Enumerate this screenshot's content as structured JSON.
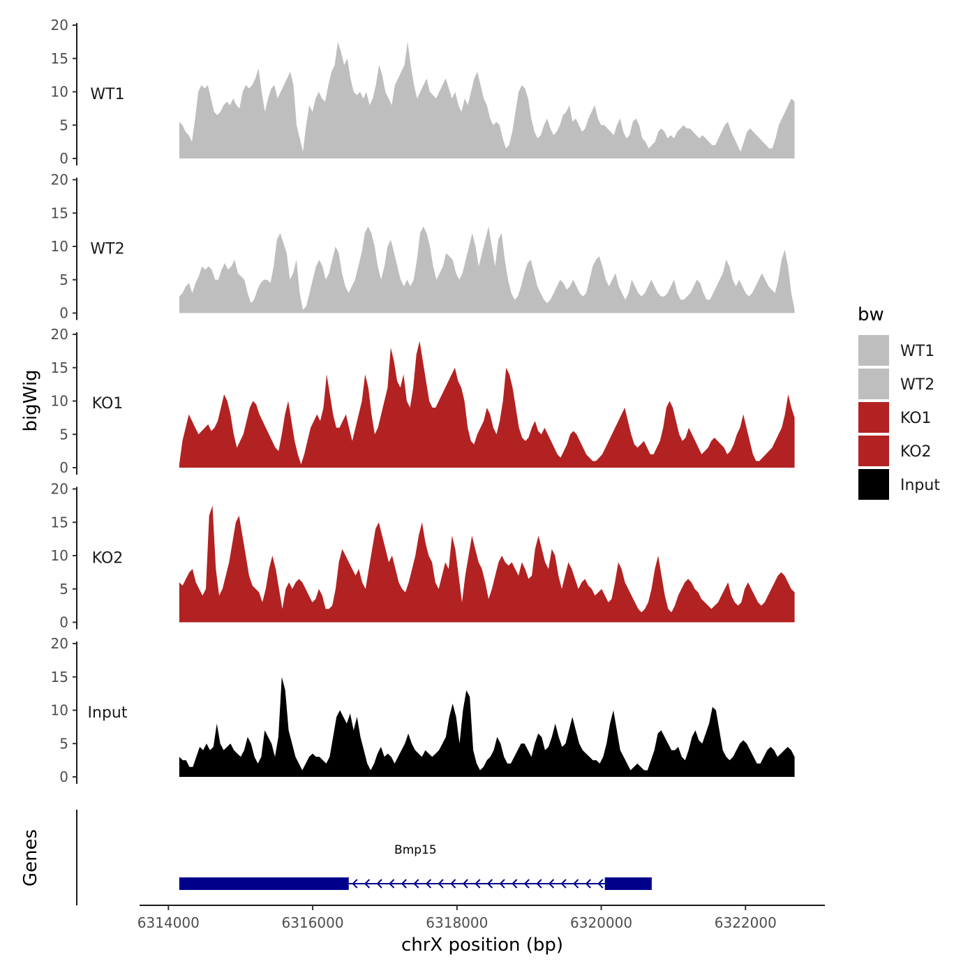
{
  "chart_data": {
    "type": "area",
    "title": "",
    "ylabel": "bigWig",
    "xlabel": "chrX position (bp)",
    "chromosome": "chrX",
    "xlim": [
      6313600,
      6323100
    ],
    "data_range": [
      6314150,
      6322680
    ],
    "ylim": [
      0,
      20
    ],
    "yticks": [
      0,
      5,
      10,
      15,
      20
    ],
    "xticks": [
      6314000,
      6316000,
      6318000,
      6320000,
      6322000
    ],
    "legend": {
      "title": "bw",
      "position": "right",
      "entries": [
        {
          "label": "WT1",
          "color": "#bebebe"
        },
        {
          "label": "WT2",
          "color": "#bebebe"
        },
        {
          "label": "KO1",
          "color": "#b22222"
        },
        {
          "label": "KO2",
          "color": "#b22222"
        },
        {
          "label": "Input",
          "color": "#000000"
        }
      ]
    },
    "series": [
      {
        "name": "WT1",
        "color": "#bebebe",
        "values": [
          5.5,
          5,
          4,
          3.5,
          2.5,
          6,
          10,
          11,
          10.5,
          11,
          9,
          7,
          6.5,
          7,
          8,
          8.5,
          8,
          9,
          8,
          7.5,
          10,
          11,
          10.5,
          11,
          12,
          13.5,
          10,
          7,
          9,
          10.5,
          11,
          9,
          10,
          11,
          12,
          13,
          11,
          5,
          3,
          1,
          5,
          8,
          7,
          9,
          10,
          9,
          8.5,
          11,
          13,
          14,
          17.5,
          16,
          14,
          15,
          12,
          10,
          9.5,
          10,
          9,
          10,
          8,
          9,
          11,
          14,
          12.5,
          10,
          9,
          8,
          11,
          12,
          13,
          14,
          17.5,
          14,
          11,
          9,
          10,
          11,
          12,
          10,
          9.5,
          9,
          10,
          11,
          12,
          10.5,
          9,
          10,
          8,
          7,
          9,
          8,
          10,
          12,
          13,
          11,
          9,
          8,
          6,
          5,
          5.5,
          5,
          3,
          1.5,
          2,
          4,
          7,
          10,
          11,
          10.5,
          9,
          6,
          4,
          3,
          3.5,
          5,
          6,
          4.5,
          3.5,
          4,
          5,
          6.5,
          7,
          8,
          5.5,
          6,
          5,
          4,
          4.5,
          6,
          7,
          8,
          6,
          5,
          5,
          4.5,
          4,
          3.5,
          5,
          6,
          4,
          3,
          3.5,
          5.5,
          6,
          5,
          3,
          2.5,
          1.5,
          2,
          2.5,
          4,
          4.5,
          4,
          3,
          3.5,
          3,
          4,
          4.5,
          5,
          4.5,
          4.5,
          4,
          3.5,
          3,
          3.5,
          3,
          2.5,
          2,
          2,
          3,
          4,
          5,
          5.5,
          4,
          3,
          2,
          1,
          2.5,
          4,
          4.5,
          4,
          3.5,
          3,
          2.5,
          2,
          1.5,
          1.5,
          3,
          5,
          6,
          7,
          8,
          9,
          8.5
        ]
      },
      {
        "name": "WT2",
        "color": "#bebebe",
        "values": [
          2.5,
          3,
          4,
          4.5,
          3,
          4.5,
          5.5,
          7,
          6.5,
          7,
          6.5,
          5,
          5,
          6.5,
          7.5,
          6.5,
          7,
          8,
          6,
          5.5,
          5,
          3,
          1.5,
          2,
          3.5,
          4.5,
          5,
          5,
          4.5,
          7,
          11,
          12,
          10.5,
          9,
          5,
          6,
          8,
          3,
          0.5,
          1,
          3,
          5,
          7,
          8,
          7,
          5,
          6,
          8,
          10,
          9,
          6,
          4,
          3,
          4,
          5,
          7,
          9,
          12,
          13,
          12,
          10,
          7,
          5,
          7,
          10,
          11,
          9,
          7,
          5,
          4,
          5,
          4,
          5,
          8,
          12,
          13,
          12,
          10,
          7,
          5,
          6,
          7,
          9,
          8.5,
          8,
          6,
          5,
          6,
          8,
          10,
          12,
          10,
          7,
          9,
          11,
          13,
          10,
          7,
          11,
          12,
          8,
          5,
          3,
          2,
          2.5,
          4,
          6,
          7.5,
          8,
          6,
          4,
          3,
          2,
          1.5,
          2,
          3,
          4,
          5,
          4.5,
          3.5,
          4,
          5,
          4,
          3,
          2.5,
          3,
          5,
          7,
          8,
          8.5,
          7,
          5,
          4,
          5,
          6,
          4,
          3,
          2,
          3,
          5,
          4,
          3,
          2.5,
          3,
          4,
          5,
          4,
          3,
          2.5,
          2.5,
          3,
          4,
          5,
          3,
          2,
          2,
          2.5,
          3,
          4,
          5,
          4.5,
          3,
          2,
          2,
          3,
          4,
          5,
          6,
          8,
          7,
          5,
          4,
          5,
          4,
          3,
          2.5,
          3,
          4,
          5,
          6,
          5,
          4,
          3.5,
          3,
          5,
          8,
          9.5,
          7,
          3,
          0.5
        ]
      },
      {
        "name": "KO1",
        "color": "#b22222",
        "values": [
          0.5,
          4,
          6,
          8,
          7,
          6,
          5,
          5.5,
          6,
          6.5,
          5.5,
          6,
          7,
          9,
          11,
          10,
          8,
          5,
          3,
          4,
          5,
          7,
          9,
          10,
          9.5,
          8,
          7,
          6,
          5,
          4,
          3,
          2.5,
          5,
          8,
          10,
          7,
          4,
          2,
          0.5,
          2,
          4,
          6,
          7,
          8,
          7,
          9,
          14,
          11,
          8,
          6,
          6,
          7,
          8,
          6,
          4,
          6,
          8,
          10,
          14,
          12,
          8,
          5,
          6,
          8,
          10,
          12,
          18,
          16,
          13,
          12,
          14,
          10,
          9,
          12,
          17,
          19,
          16,
          13,
          10,
          9,
          9,
          10,
          11,
          12,
          13,
          14,
          15,
          13,
          12,
          10,
          6,
          4,
          3.5,
          5,
          6,
          7,
          9,
          8,
          6,
          5,
          7,
          10,
          15,
          14,
          12,
          9,
          6,
          4.5,
          4,
          4.5,
          6,
          7,
          5.5,
          5,
          6,
          5,
          4,
          3,
          2,
          1.5,
          2.5,
          3.5,
          5,
          5.5,
          5,
          4,
          3,
          2,
          1.5,
          1,
          1,
          1.5,
          2,
          3,
          4,
          5,
          6,
          7,
          8,
          9,
          7,
          5,
          3.5,
          3,
          3.5,
          4,
          3,
          2,
          2,
          3,
          4,
          6,
          9,
          10,
          9,
          7,
          5,
          4,
          4.5,
          6,
          5,
          4,
          3,
          2,
          2.5,
          3,
          4,
          4.5,
          4,
          3.5,
          3,
          2,
          2.5,
          3.5,
          5,
          6,
          8,
          6,
          4,
          2,
          1,
          1,
          1.5,
          2,
          2.5,
          3,
          4,
          5,
          6,
          8,
          11,
          9,
          7.5
        ]
      },
      {
        "name": "KO2",
        "color": "#b22222",
        "values": [
          6,
          5.5,
          6.5,
          7.5,
          8,
          6,
          5,
          4,
          5,
          16,
          17.5,
          8,
          4,
          5,
          7,
          9,
          12,
          15,
          16,
          13,
          10,
          7,
          5.5,
          5,
          4.5,
          3,
          5,
          8,
          10,
          8,
          5,
          2,
          5,
          6,
          5,
          6,
          6.5,
          6,
          5,
          4,
          3,
          3.5,
          5,
          4,
          2,
          2,
          2.5,
          5,
          9,
          11,
          10,
          9,
          8,
          7,
          8,
          6,
          5,
          8,
          11,
          14,
          15,
          13,
          11,
          9,
          10,
          8,
          6,
          5,
          4.5,
          6,
          8,
          10,
          13,
          15,
          12,
          10,
          9,
          6,
          5,
          7,
          9,
          8,
          13,
          11,
          7,
          3,
          7,
          10,
          13,
          11,
          9,
          8,
          6,
          3.5,
          5,
          7,
          9,
          10,
          9,
          8.5,
          9,
          8,
          7,
          9,
          8,
          6.5,
          7,
          11,
          13,
          11,
          9,
          8,
          11,
          10,
          7,
          5,
          7,
          9,
          8,
          6.5,
          5,
          6,
          6.5,
          5.5,
          5,
          4,
          4.5,
          5,
          4,
          3,
          3.5,
          6,
          9,
          8,
          6,
          5,
          4,
          3,
          2,
          1.5,
          2,
          3,
          5,
          8,
          10,
          7,
          4,
          2,
          1.5,
          2.5,
          4,
          5,
          6,
          6.5,
          6,
          5,
          4.5,
          3.5,
          3,
          2.5,
          2,
          2.5,
          3,
          4,
          5,
          6,
          4,
          3,
          2.5,
          3,
          5,
          6,
          5,
          4,
          3,
          2.5,
          3,
          4,
          5,
          6,
          7,
          7.5,
          7,
          6,
          5,
          4.5
        ]
      },
      {
        "name": "Input",
        "color": "#000000",
        "values": [
          3,
          2.5,
          2.5,
          1.5,
          1.5,
          3,
          4.5,
          4,
          5,
          4,
          4.5,
          8,
          5,
          4,
          4.5,
          5,
          4,
          3.5,
          3,
          4,
          6,
          5,
          3,
          2,
          3,
          7,
          6,
          5,
          3,
          6,
          15,
          13,
          7,
          5,
          3,
          2,
          1,
          2,
          3,
          3.5,
          3,
          3,
          2.5,
          2,
          3,
          6,
          9,
          10,
          9,
          8,
          9.5,
          7,
          9,
          6,
          4,
          2,
          1,
          2,
          3.5,
          4.5,
          3,
          3.5,
          3,
          2,
          3,
          4,
          5,
          6.5,
          5,
          4,
          3.5,
          3,
          4,
          3.5,
          3,
          3.5,
          4,
          5,
          6,
          9,
          11,
          9,
          5,
          10,
          13,
          12,
          4,
          2,
          1,
          1.5,
          2.5,
          3,
          4,
          6,
          5,
          3,
          2,
          2,
          3,
          4,
          5,
          5,
          4,
          3,
          5,
          6.5,
          6,
          4,
          4.5,
          6,
          8,
          6,
          4.5,
          5,
          7,
          9,
          7,
          5,
          4,
          3.5,
          3,
          2.5,
          2.5,
          2,
          3,
          5,
          8,
          10,
          7,
          4,
          3,
          2,
          1,
          1.5,
          2,
          1.5,
          1,
          1,
          2.5,
          4,
          6.5,
          7,
          6,
          5,
          4,
          4,
          4.5,
          3,
          2.5,
          4,
          6,
          7,
          5.5,
          5,
          6.5,
          8,
          10.5,
          10,
          7,
          4,
          3,
          2.5,
          3,
          4,
          5,
          5.5,
          5,
          4,
          3,
          2,
          2,
          3,
          4,
          4.5,
          4,
          3,
          3.5,
          4,
          4.5,
          4,
          3
        ]
      }
    ],
    "gene_track": {
      "label": "Genes",
      "gene_name": "Bmp15",
      "color": "#00008b",
      "strand": "-",
      "exons": [
        [
          6314150,
          6316500
        ],
        [
          6320050,
          6320700
        ]
      ],
      "intron": [
        6316500,
        6320050
      ]
    }
  }
}
